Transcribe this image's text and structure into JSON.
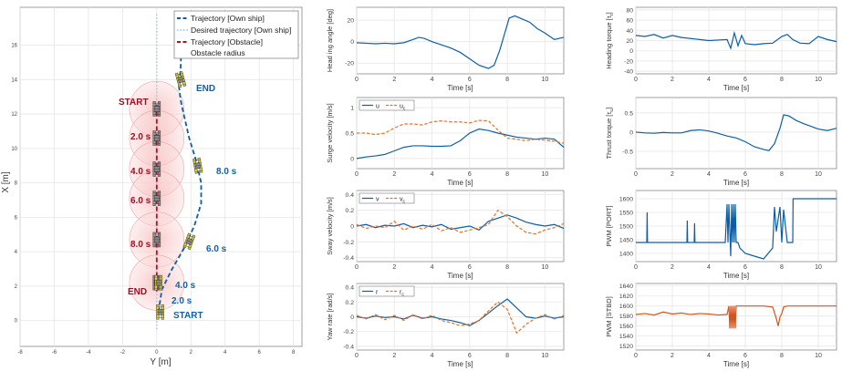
{
  "colors": {
    "own": "#0b5fa8",
    "obstacle": "#b01020",
    "desired": "#87c6e8",
    "ref": "#e8702a",
    "grid": "#e6e6e6",
    "axis": "#555555"
  },
  "trajectory_panel": {
    "xlabel": "Y [m]",
    "ylabel": "X [m]",
    "legend": [
      "Trajectory [Own ship]",
      "Desired trajectory [Own ship]",
      "Trajectory [Obstacle]",
      "Obstacle radius"
    ],
    "annotations": {
      "obs_start": "START",
      "obs_end": "END",
      "own_start": "START",
      "own_end": "END",
      "obs_t2": "2.0 s",
      "obs_t4": "4.0 s",
      "obs_t6": "6.0 s",
      "obs_t8": "8.0 s",
      "own_t2": "2.0 s",
      "own_t4": "4.0 s",
      "own_t6": "6.0 s",
      "own_t8": "8.0 s"
    }
  },
  "chart_data": [
    {
      "id": "traj",
      "type": "line",
      "xlabel": "Y [m]",
      "ylabel": "X [m]",
      "xlim": [
        -8,
        8.5
      ],
      "ylim": [
        -1.5,
        18.2
      ],
      "xticks": [
        -8,
        -6,
        -4,
        -2,
        0,
        2,
        4,
        6,
        8
      ],
      "yticks": [
        0,
        2,
        4,
        6,
        8,
        10,
        12,
        14,
        16
      ],
      "grid": true,
      "legend_position": "top-right",
      "series": [
        {
          "name": "Trajectory [Own ship]",
          "style": "dashed",
          "color": "#0b5fa8",
          "x": [
            0.1,
            0.3,
            0.9,
            1.6,
            2.2,
            2.6,
            2.6,
            2.3,
            1.9,
            1.6,
            1.4,
            1.3,
            1.4,
            1.5
          ],
          "y": [
            0.5,
            1.8,
            3.0,
            4.2,
            5.5,
            6.8,
            8.0,
            9.3,
            10.6,
            11.9,
            12.8,
            13.6,
            14.7,
            17.9
          ]
        },
        {
          "name": "Desired trajectory [Own ship]",
          "style": "dotted",
          "color": "#87c6e8",
          "x": [
            0,
            0
          ],
          "y": [
            -0.5,
            17.8
          ]
        },
        {
          "name": "Trajectory [Obstacle]",
          "style": "dashed",
          "color": "#b01020",
          "x": [
            0,
            0
          ],
          "y": [
            1.7,
            12.6
          ]
        }
      ],
      "obstacle_circles": [
        {
          "x": 0,
          "y": 12.3,
          "r": 1.6
        },
        {
          "x": 0,
          "y": 10.6,
          "r": 1.6
        },
        {
          "x": 0,
          "y": 8.8,
          "r": 1.6
        },
        {
          "x": 0,
          "y": 7.1,
          "r": 1.6
        },
        {
          "x": 0,
          "y": 4.7,
          "r": 1.6
        },
        {
          "x": 0,
          "y": 2.2,
          "r": 1.6
        }
      ],
      "obstacle_ships": [
        {
          "x": 0,
          "y": 12.3
        },
        {
          "x": 0,
          "y": 10.6
        },
        {
          "x": 0,
          "y": 8.8
        },
        {
          "x": 0,
          "y": 7.1
        },
        {
          "x": 0,
          "y": 4.7
        },
        {
          "x": 0,
          "y": 2.2
        }
      ],
      "own_ships": [
        {
          "x": 0.2,
          "y": 0.5
        },
        {
          "x": 0.1,
          "y": 2.2
        },
        {
          "x": 1.9,
          "y": 4.6
        },
        {
          "x": 2.4,
          "y": 9.0
        },
        {
          "x": 1.4,
          "y": 14.0
        }
      ]
    },
    {
      "id": "heading",
      "type": "line",
      "ylabel": "Head ing angle [deg]",
      "xlabel": "Time [s]",
      "xlim": [
        0,
        11
      ],
      "ylim": [
        -30,
        32
      ],
      "xticks": [
        0,
        2,
        4,
        6,
        8,
        10
      ],
      "yticks": [
        -20,
        0,
        20
      ],
      "grid": true,
      "series": [
        {
          "color": "#0b5fa8",
          "x": [
            0,
            0.5,
            1,
            1.5,
            2,
            2.5,
            3,
            3.3,
            3.6,
            4,
            4.5,
            5,
            5.5,
            6,
            6.5,
            7,
            7.3,
            7.6,
            7.9,
            8.1,
            8.4,
            8.8,
            9.2,
            9.6,
            10,
            10.5,
            11
          ],
          "y": [
            -1,
            -1.5,
            -2,
            -1.5,
            -2,
            -1,
            2,
            4,
            3,
            0,
            -3,
            -6,
            -10,
            -16,
            -22,
            -25,
            -22,
            -8,
            10,
            22,
            24,
            21,
            18,
            12,
            8,
            2,
            4
          ]
        }
      ]
    },
    {
      "id": "surge",
      "type": "line",
      "ylabel": "Surge velocity [m/s]",
      "xlabel": "Time [s]",
      "xlim": [
        0,
        11
      ],
      "ylim": [
        -0.2,
        1.2
      ],
      "xticks": [
        0,
        2,
        4,
        6,
        8,
        10
      ],
      "yticks": [
        0,
        0.5,
        1
      ],
      "grid": true,
      "legend": [
        "u",
        "u"
      ],
      "legend_subscript": "c",
      "legend_position": "top-left",
      "series": [
        {
          "name": "u",
          "color": "#0b5fa8",
          "style": "solid",
          "x": [
            0,
            0.5,
            1,
            1.5,
            2,
            2.5,
            3,
            3.5,
            4,
            4.5,
            5,
            5.5,
            6,
            6.5,
            7,
            7.5,
            8,
            8.5,
            9,
            9.5,
            10,
            10.5,
            11
          ],
          "y": [
            0,
            0.03,
            0.05,
            0.08,
            0.15,
            0.22,
            0.25,
            0.25,
            0.24,
            0.24,
            0.25,
            0.35,
            0.5,
            0.58,
            0.55,
            0.5,
            0.46,
            0.42,
            0.4,
            0.38,
            0.4,
            0.38,
            0.22
          ]
        },
        {
          "name": "u",
          "color": "#e8702a",
          "style": "dashed",
          "x": [
            0,
            0.5,
            1,
            1.5,
            2,
            2.5,
            3,
            3.5,
            4,
            4.5,
            5,
            5.5,
            6,
            6.5,
            7,
            7.5,
            8,
            8.5,
            9,
            9.5,
            10,
            10.5,
            11
          ],
          "y": [
            0.5,
            0.5,
            0.47,
            0.5,
            0.6,
            0.68,
            0.68,
            0.66,
            0.72,
            0.74,
            0.72,
            0.72,
            0.7,
            0.75,
            0.74,
            0.56,
            0.4,
            0.38,
            0.35,
            0.38,
            0.36,
            0.34,
            0.3
          ]
        }
      ]
    },
    {
      "id": "sway",
      "type": "line",
      "ylabel": "Sway velocity [m/s]",
      "xlabel": "Time [s]",
      "xlim": [
        0,
        11
      ],
      "ylim": [
        -0.45,
        0.45
      ],
      "xticks": [
        0,
        2,
        4,
        6,
        8,
        10
      ],
      "yticks": [
        -0.4,
        -0.2,
        0,
        0.2,
        0.4
      ],
      "grid": true,
      "legend": [
        "v",
        "v"
      ],
      "legend_subscript": "c",
      "legend_position": "top-left",
      "series": [
        {
          "name": "v",
          "color": "#0b5fa8",
          "style": "solid",
          "x": [
            0,
            0.5,
            1,
            1.5,
            2,
            2.5,
            3,
            3.5,
            4,
            4.5,
            5,
            5.5,
            6,
            6.5,
            7,
            7.5,
            8,
            8.5,
            9,
            9.5,
            10,
            10.5,
            11
          ],
          "y": [
            0.0,
            0.02,
            -0.02,
            0.01,
            0.0,
            0.03,
            -0.02,
            0.01,
            -0.01,
            0.02,
            -0.04,
            -0.02,
            0.0,
            -0.05,
            0.06,
            0.1,
            0.14,
            0.1,
            0.05,
            0.02,
            0.0,
            0.02,
            -0.03
          ]
        },
        {
          "name": "v",
          "color": "#e8702a",
          "style": "dashed",
          "x": [
            0,
            0.5,
            1,
            1.5,
            2,
            2.5,
            3,
            3.5,
            4,
            4.5,
            5,
            5.5,
            6,
            6.5,
            7,
            7.5,
            8,
            8.5,
            9,
            9.5,
            10,
            10.5,
            11
          ],
          "y": [
            0.02,
            -0.03,
            0.0,
            -0.02,
            0.06,
            -0.05,
            0.0,
            -0.04,
            0.02,
            -0.06,
            -0.02,
            -0.08,
            -0.05,
            -0.02,
            0.02,
            0.2,
            0.12,
            0.0,
            -0.08,
            -0.1,
            -0.05,
            -0.02,
            0.03
          ]
        }
      ]
    },
    {
      "id": "yaw",
      "type": "line",
      "ylabel": "Yaw rate [rad/s]",
      "xlabel": "Time [s]",
      "xlim": [
        0,
        11
      ],
      "ylim": [
        -0.45,
        0.45
      ],
      "xticks": [
        0,
        2,
        4,
        6,
        8,
        10
      ],
      "yticks": [
        -0.4,
        -0.2,
        0,
        0.2,
        0.4
      ],
      "grid": true,
      "legend": [
        "r",
        "r"
      ],
      "legend_subscript": "c",
      "legend_position": "top-left",
      "series": [
        {
          "name": "r",
          "color": "#0b5fa8",
          "style": "solid",
          "x": [
            0,
            0.5,
            1,
            1.5,
            2,
            2.5,
            3,
            3.5,
            4,
            4.5,
            5,
            5.5,
            6,
            6.5,
            7,
            7.5,
            8,
            8.5,
            9,
            9.5,
            10,
            10.5,
            11
          ],
          "y": [
            0.0,
            -0.02,
            0.01,
            -0.01,
            0.0,
            -0.03,
            0.02,
            -0.02,
            0.0,
            -0.03,
            -0.05,
            -0.08,
            -0.12,
            -0.05,
            0.05,
            0.15,
            0.24,
            0.12,
            0.0,
            -0.02,
            0.01,
            -0.02,
            0.0
          ]
        },
        {
          "name": "r",
          "color": "#e8702a",
          "style": "dashed",
          "x": [
            0,
            0.5,
            1,
            1.5,
            2,
            2.5,
            3,
            3.5,
            4,
            4.5,
            5,
            5.5,
            6,
            6.5,
            7,
            7.5,
            8,
            8.5,
            9,
            9.5,
            10,
            10.5,
            11
          ],
          "y": [
            0.02,
            -0.03,
            0.03,
            -0.04,
            0.02,
            -0.05,
            0.03,
            -0.03,
            0.02,
            -0.05,
            -0.08,
            -0.12,
            -0.1,
            -0.05,
            0.08,
            0.2,
            0.1,
            -0.22,
            -0.1,
            -0.02,
            0.03,
            -0.03,
            0.02
          ]
        }
      ]
    },
    {
      "id": "heading_torque",
      "type": "line",
      "ylabel": "Heading torque [τ",
      "ylabel_sub": "r",
      "ylabel_end": "]",
      "xlabel": "Time [s]",
      "xlim": [
        0,
        11
      ],
      "ylim": [
        -45,
        85
      ],
      "xticks": [
        0,
        2,
        4,
        6,
        8,
        10
      ],
      "yticks": [
        -40,
        -20,
        0,
        20,
        40,
        60,
        80
      ],
      "grid": true,
      "series": [
        {
          "color": "#0b5fa8",
          "x": [
            0,
            0.5,
            1,
            1.5,
            2,
            2.5,
            3,
            3.5,
            4,
            4.5,
            5,
            5.2,
            5.4,
            5.6,
            5.8,
            6,
            6.5,
            7,
            7.5,
            8,
            8.3,
            8.6,
            9,
            9.5,
            10,
            10.5,
            11
          ],
          "y": [
            30,
            28,
            32,
            25,
            30,
            26,
            24,
            22,
            20,
            21,
            22,
            5,
            35,
            10,
            30,
            14,
            12,
            14,
            15,
            28,
            32,
            22,
            15,
            14,
            28,
            22,
            18
          ]
        }
      ]
    },
    {
      "id": "thrust_torque",
      "type": "line",
      "ylabel": "Thrust torque [τ",
      "ylabel_sub": "u",
      "ylabel_end": "]",
      "xlabel": "Time [s]",
      "xlim": [
        0,
        11
      ],
      "ylim": [
        -0.95,
        0.9
      ],
      "xticks": [
        0,
        2,
        4,
        6,
        8,
        10
      ],
      "yticks": [
        -0.5,
        0,
        0.5
      ],
      "grid": true,
      "series": [
        {
          "color": "#0b5fa8",
          "x": [
            0,
            0.5,
            1,
            1.5,
            2,
            2.5,
            3,
            3.5,
            4,
            4.5,
            5,
            5.5,
            6,
            6.5,
            7,
            7.3,
            7.6,
            7.9,
            8.1,
            8.4,
            8.8,
            9.2,
            9.6,
            10,
            10.5,
            11
          ],
          "y": [
            0,
            -0.02,
            -0.03,
            -0.01,
            -0.02,
            -0.02,
            0.04,
            0.06,
            0.03,
            -0.03,
            -0.1,
            -0.15,
            -0.25,
            -0.38,
            -0.45,
            -0.48,
            -0.3,
            0.1,
            0.45,
            0.42,
            0.3,
            0.22,
            0.15,
            0.08,
            0.04,
            0.1
          ]
        }
      ]
    },
    {
      "id": "pwm_port",
      "type": "line",
      "ylabel": "PWM [PORT]",
      "xlabel": "Time [s]",
      "xlim": [
        0,
        11
      ],
      "ylim": [
        1370,
        1630
      ],
      "xticks": [
        0,
        2,
        4,
        6,
        8,
        10
      ],
      "yticks": [
        1400,
        1450,
        1500,
        1550,
        1600
      ],
      "grid": true,
      "series": [
        {
          "color": "#0b5fa8",
          "x": [
            0,
            0.6,
            0.62,
            0.64,
            0.7,
            1.5,
            2.5,
            2.8,
            2.82,
            2.84,
            3.0,
            3.2,
            3.22,
            3.24,
            3.4,
            3.8,
            4.5,
            4.9,
            5.0,
            5.05,
            5.1,
            5.2,
            5.25,
            5.3,
            5.35,
            5.4,
            5.45,
            5.5,
            5.6,
            5.7,
            6.0,
            6.5,
            7.0,
            7.5,
            7.6,
            7.7,
            7.9,
            8.0,
            8.1,
            8.3,
            8.5,
            8.6,
            8.62,
            9,
            10,
            11
          ],
          "y": [
            1440,
            1440,
            1550,
            1440,
            1440,
            1440,
            1440,
            1440,
            1520,
            1440,
            1440,
            1440,
            1510,
            1440,
            1440,
            1440,
            1440,
            1440,
            1580,
            1440,
            1580,
            1390,
            1580,
            1440,
            1580,
            1440,
            1580,
            1440,
            1440,
            1420,
            1400,
            1390,
            1380,
            1420,
            1570,
            1480,
            1570,
            1440,
            1560,
            1440,
            1440,
            1440,
            1600,
            1600,
            1600,
            1600
          ]
        }
      ]
    },
    {
      "id": "pwm_stbd",
      "type": "line",
      "ylabel": "PWM [STBD]",
      "xlabel": "Time [s]",
      "xlim": [
        0,
        11
      ],
      "ylim": [
        1512,
        1645
      ],
      "xticks": [
        0,
        2,
        4,
        6,
        8,
        10
      ],
      "yticks": [
        1520,
        1540,
        1560,
        1580,
        1600,
        1620,
        1640
      ],
      "grid": true,
      "series": [
        {
          "color": "#d2561c",
          "x": [
            0,
            0.5,
            1,
            1.5,
            2,
            2.5,
            3,
            3.5,
            4,
            4.5,
            5,
            5.1,
            5.15,
            5.2,
            5.25,
            5.3,
            5.35,
            5.4,
            5.45,
            5.5,
            5.6,
            5.8,
            6.0,
            6.2,
            6.5,
            7.0,
            7.5,
            7.7,
            7.8,
            7.9,
            8.0,
            8.1,
            8.3,
            8.6,
            9,
            10,
            11
          ],
          "y": [
            1583,
            1585,
            1582,
            1588,
            1584,
            1586,
            1583,
            1585,
            1584,
            1582,
            1583,
            1600,
            1555,
            1600,
            1555,
            1600,
            1555,
            1600,
            1555,
            1600,
            1600,
            1600,
            1600,
            1600,
            1600,
            1600,
            1598,
            1575,
            1560,
            1578,
            1585,
            1598,
            1600,
            1600,
            1600,
            1600,
            1600
          ]
        }
      ]
    }
  ]
}
